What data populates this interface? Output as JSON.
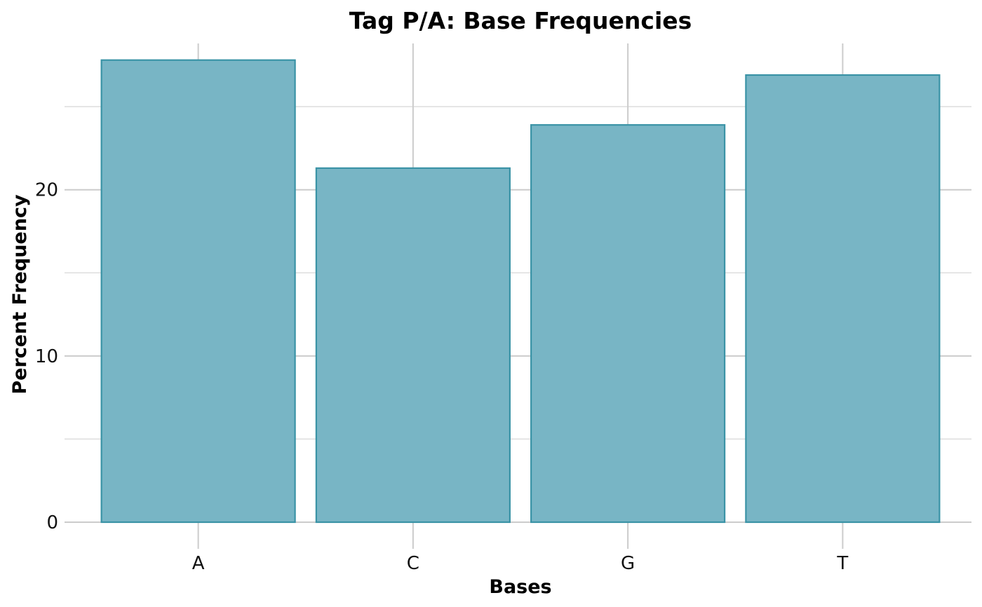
{
  "chart_data": {
    "type": "bar",
    "title": "Tag P/A: Base Frequencies",
    "xlabel": "Bases",
    "ylabel": "Percent Frequency",
    "categories": [
      "A",
      "C",
      "G",
      "T"
    ],
    "values": [
      27.8,
      21.3,
      23.9,
      26.9
    ],
    "ylim": [
      0,
      28.8
    ],
    "yticks": [
      0,
      10,
      20
    ],
    "y_minor_ticks": [
      5,
      15,
      25
    ],
    "grid": true,
    "colors": {
      "bar_fill": "#78b5c5",
      "bar_stroke": "#3a93a6"
    }
  }
}
